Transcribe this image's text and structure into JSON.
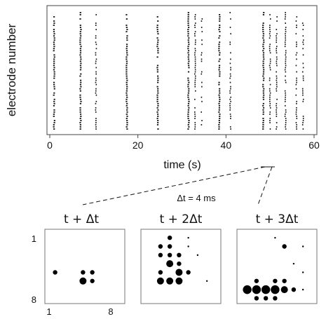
{
  "chart_data": [
    {
      "type": "scatter",
      "subtype": "raster",
      "xlabel": "time (s)",
      "ylabel": "electrode number",
      "xlim": [
        0,
        60
      ],
      "xticks": [
        "0",
        "20",
        "40",
        "60"
      ],
      "yticks_shown": false,
      "burst_times_s": [
        1.0,
        7.0,
        10.5,
        17.5,
        24.5,
        31.5,
        33.0,
        34.5,
        38.5,
        41.0,
        48.5,
        50.0,
        51.5,
        53.5,
        56.0,
        57.5
      ],
      "burst_strength": [
        1.0,
        1.0,
        0.7,
        1.0,
        1.0,
        1.0,
        0.8,
        0.4,
        1.0,
        0.6,
        1.0,
        0.8,
        0.6,
        0.8,
        0.7,
        0.6
      ],
      "zoom_annotation": "Δt = 4 ms"
    },
    {
      "type": "heatmap",
      "subtype": "electrode-grid activity snapshots",
      "grid_size": [
        8,
        8
      ],
      "axis_tick_labels": {
        "rows": [
          "1",
          "8"
        ],
        "cols": [
          "1",
          "8"
        ]
      },
      "panels": [
        {
          "title": "t + Δt",
          "active_sites": [
            {
              "col": 1,
              "row": 5,
              "size": 1
            },
            {
              "col": 4,
              "row": 5,
              "size": 1
            },
            {
              "col": 5,
              "row": 5,
              "size": 1
            },
            {
              "col": 4,
              "row": 6,
              "size": 2
            },
            {
              "col": 5,
              "row": 6,
              "size": 1
            }
          ]
        },
        {
          "title": "t + 2Δt",
          "active_sites": [
            {
              "col": 3,
              "row": 1,
              "size": 1
            },
            {
              "col": 5,
              "row": 1,
              "size": 0
            },
            {
              "col": 2,
              "row": 2,
              "size": 1
            },
            {
              "col": 3,
              "row": 2,
              "size": 1
            },
            {
              "col": 5,
              "row": 2,
              "size": 0
            },
            {
              "col": 2,
              "row": 3,
              "size": 1
            },
            {
              "col": 3,
              "row": 3,
              "size": 1
            },
            {
              "col": 4,
              "row": 3,
              "size": 1
            },
            {
              "col": 6,
              "row": 3,
              "size": 0
            },
            {
              "col": 3,
              "row": 4,
              "size": 2
            },
            {
              "col": 4,
              "row": 4,
              "size": 1
            },
            {
              "col": 2,
              "row": 5,
              "size": 1
            },
            {
              "col": 4,
              "row": 5,
              "size": 2
            },
            {
              "col": 5,
              "row": 5,
              "size": 1
            },
            {
              "col": 2,
              "row": 6,
              "size": 2
            },
            {
              "col": 3,
              "row": 6,
              "size": 2
            },
            {
              "col": 4,
              "row": 6,
              "size": 2
            },
            {
              "col": 7,
              "row": 6,
              "size": 0
            }
          ]
        },
        {
          "title": "t + 3Δt",
          "active_sites": [
            {
              "col": 4,
              "row": 1,
              "size": 0
            },
            {
              "col": 5,
              "row": 2,
              "size": 1
            },
            {
              "col": 7,
              "row": 2,
              "size": 0
            },
            {
              "col": 6,
              "row": 4,
              "size": 0
            },
            {
              "col": 7,
              "row": 5,
              "size": 0
            },
            {
              "col": 2,
              "row": 6,
              "size": 1
            },
            {
              "col": 4,
              "row": 6,
              "size": 1
            },
            {
              "col": 5,
              "row": 6,
              "size": 1
            },
            {
              "col": 1,
              "row": 7,
              "size": 3
            },
            {
              "col": 2,
              "row": 7,
              "size": 3
            },
            {
              "col": 3,
              "row": 7,
              "size": 3
            },
            {
              "col": 4,
              "row": 7,
              "size": 3
            },
            {
              "col": 5,
              "row": 7,
              "size": 2
            },
            {
              "col": 6,
              "row": 7,
              "size": 1
            },
            {
              "col": 7,
              "row": 7,
              "size": 0
            },
            {
              "col": 2,
              "row": 8,
              "size": 1
            },
            {
              "col": 3,
              "row": 8,
              "size": 1
            },
            {
              "col": 4,
              "row": 8,
              "size": 1
            }
          ]
        }
      ]
    }
  ]
}
